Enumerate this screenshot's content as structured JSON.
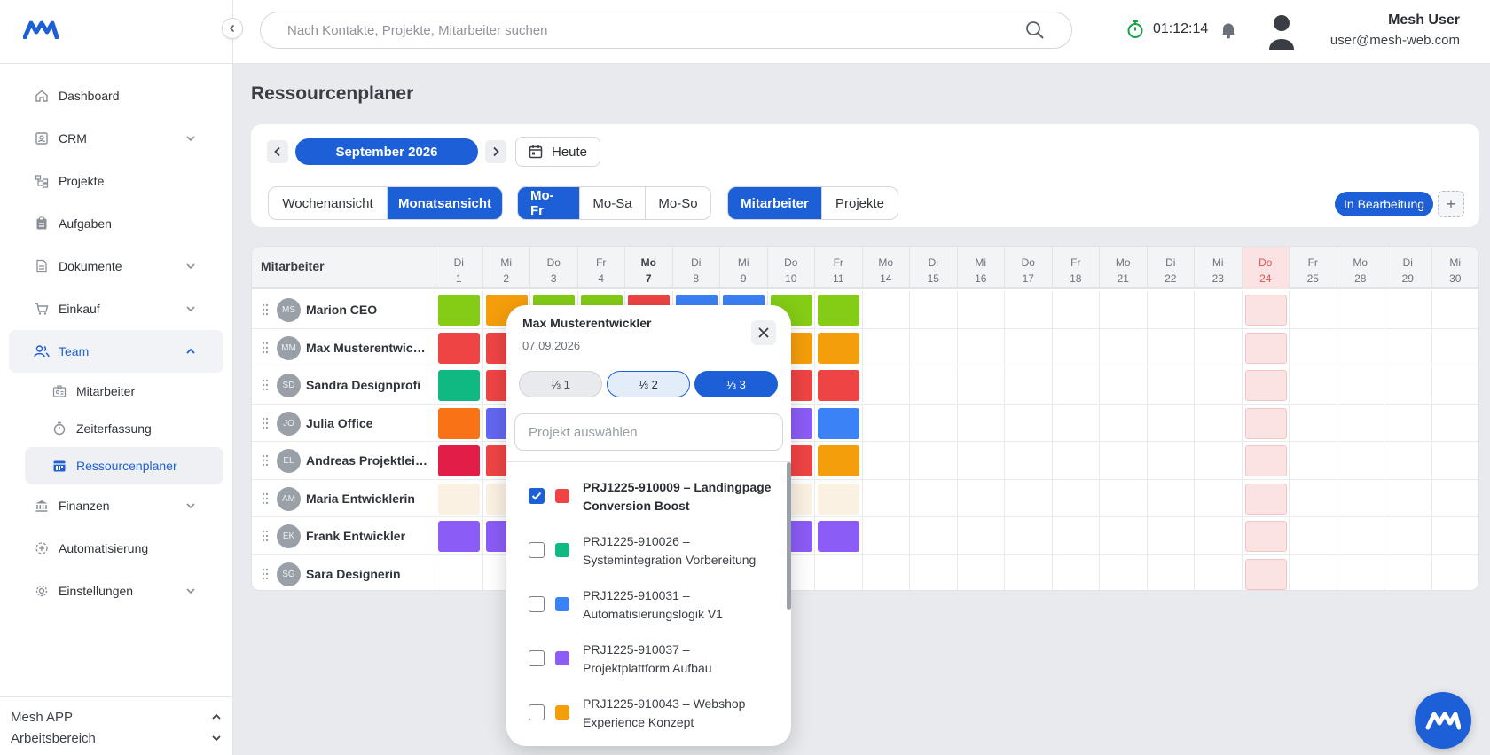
{
  "colors": {
    "accent": "#1d5fd6",
    "lime": "#84cc16",
    "amber": "#f59e0b",
    "red": "#ef4444",
    "blue": "#3b82f6",
    "green": "#10b981",
    "indigo": "#6366f1",
    "orange": "#f97316",
    "crimson": "#e11d48",
    "violet": "#8b5cf6",
    "cream": "#fbf1e3",
    "today_cell": "#fbe3e3"
  },
  "sidebar": {
    "collapse_icon": "chevron-left-icon",
    "items": [
      {
        "label": "Dashboard",
        "icon": "home-icon"
      },
      {
        "label": "CRM",
        "icon": "contact-card-icon"
      },
      {
        "label": "Projekte",
        "icon": "sitemap-icon"
      },
      {
        "label": "Aufgaben",
        "icon": "clipboard-icon"
      },
      {
        "label": "Dokumente",
        "icon": "document-icon"
      },
      {
        "label": "Einkauf",
        "icon": "cart-icon"
      },
      {
        "label": "Team",
        "icon": "users-icon"
      },
      {
        "label": "Finanzen",
        "icon": "bank-icon"
      },
      {
        "label": "Automatisierung",
        "icon": "automation-icon"
      },
      {
        "label": "Einstellungen",
        "icon": "gear-icon"
      }
    ],
    "team_sub": [
      {
        "label": "Mitarbeiter",
        "icon": "id-badge-icon"
      },
      {
        "label": "Zeiterfassung",
        "icon": "stopwatch-icon"
      },
      {
        "label": "Ressourcenplaner",
        "icon": "calendar-icon"
      }
    ],
    "footer": {
      "app": "Mesh APP",
      "workspace": "Arbeitsbereich"
    }
  },
  "topbar": {
    "search_placeholder": "Nach Kontakte, Projekte, Mitarbeiter suchen",
    "timer": "01:12:14",
    "user_name": "Mesh User",
    "user_email": "user@mesh-web.com"
  },
  "page": {
    "title": "Ressourcenplaner",
    "month": "September 2026",
    "today": "Heute",
    "view_modes": [
      "Wochenansicht",
      "Monatsansicht"
    ],
    "day_ranges": [
      "Mo-Fr",
      "Mo-Sa",
      "Mo-So"
    ],
    "group_by": [
      "Mitarbeiter",
      "Projekte"
    ],
    "status": "In Bearbeitung",
    "add": "+"
  },
  "grid": {
    "name_header": "Mitarbeiter",
    "days": [
      {
        "wd": "Di",
        "d": "1"
      },
      {
        "wd": "Mi",
        "d": "2"
      },
      {
        "wd": "Do",
        "d": "3"
      },
      {
        "wd": "Fr",
        "d": "4"
      },
      {
        "wd": "Mo",
        "d": "7"
      },
      {
        "wd": "Di",
        "d": "8"
      },
      {
        "wd": "Mi",
        "d": "9"
      },
      {
        "wd": "Do",
        "d": "10"
      },
      {
        "wd": "Fr",
        "d": "11"
      },
      {
        "wd": "Mo",
        "d": "14"
      },
      {
        "wd": "Di",
        "d": "15"
      },
      {
        "wd": "Mi",
        "d": "16"
      },
      {
        "wd": "Do",
        "d": "17"
      },
      {
        "wd": "Fr",
        "d": "18"
      },
      {
        "wd": "Mo",
        "d": "21"
      },
      {
        "wd": "Di",
        "d": "22"
      },
      {
        "wd": "Mi",
        "d": "23"
      },
      {
        "wd": "Do",
        "d": "24"
      },
      {
        "wd": "Fr",
        "d": "25"
      },
      {
        "wd": "Mo",
        "d": "28"
      },
      {
        "wd": "Di",
        "d": "29"
      },
      {
        "wd": "Mi",
        "d": "30"
      }
    ],
    "employees": [
      {
        "initials": "MS",
        "name": "Marion CEO",
        "cells": [
          "lime",
          "amber",
          "lime",
          "lime",
          "red",
          "blue",
          "blue",
          "lime",
          "lime"
        ]
      },
      {
        "initials": "MM",
        "name": "Max Musterentwickler",
        "cells": [
          "red",
          "red",
          "",
          "",
          "",
          "",
          "",
          "amber",
          "amber"
        ]
      },
      {
        "initials": "SD",
        "name": "Sandra Designprofi",
        "cells": [
          "green",
          "red",
          "",
          "",
          "",
          "",
          "",
          "red",
          "red"
        ]
      },
      {
        "initials": "JO",
        "name": "Julia Office",
        "cells": [
          "orange",
          "indigo",
          "",
          "",
          "",
          "",
          "",
          "violet",
          "blue"
        ]
      },
      {
        "initials": "EL",
        "name": "Andreas Projektleiter",
        "cells": [
          "crimson",
          "red",
          "",
          "",
          "",
          "",
          "",
          "red",
          "amber"
        ]
      },
      {
        "initials": "AM",
        "name": "Maria Entwicklerin",
        "cells": [
          "cream",
          "cream",
          "",
          "",
          "",
          "",
          "",
          "cream",
          "cream"
        ]
      },
      {
        "initials": "EK",
        "name": "Frank Entwickler",
        "cells": [
          "violet",
          "violet",
          "",
          "",
          "",
          "",
          "",
          "violet",
          "violet"
        ]
      },
      {
        "initials": "SG",
        "name": "Sara Designerin",
        "cells": [
          "",
          "",
          "",
          "",
          "",
          "",
          "",
          "",
          ""
        ]
      }
    ]
  },
  "popup": {
    "employee": "Max Musterentwickler",
    "date": "07.09.2026",
    "fractions": [
      "⅓ 1",
      "⅓ 2",
      "⅓ 3"
    ],
    "project_placeholder": "Projekt auswählen",
    "projects": [
      {
        "id": "PRJ1225-910009",
        "name": "Landingpage Conversion Boost",
        "color": "#ef4444",
        "checked": true
      },
      {
        "id": "PRJ1225-910026",
        "name": "Systemintegration Vorbereitung",
        "color": "#10b981",
        "checked": false
      },
      {
        "id": "PRJ1225-910031",
        "name": "Automatisierungslogik V1",
        "color": "#3b82f6",
        "checked": false
      },
      {
        "id": "PRJ1225-910037",
        "name": "Projektplattform Aufbau",
        "color": "#8b5cf6",
        "checked": false
      },
      {
        "id": "PRJ1225-910043",
        "name": "Webshop Experience Konzept",
        "color": "#f59e0b",
        "checked": false
      }
    ]
  }
}
